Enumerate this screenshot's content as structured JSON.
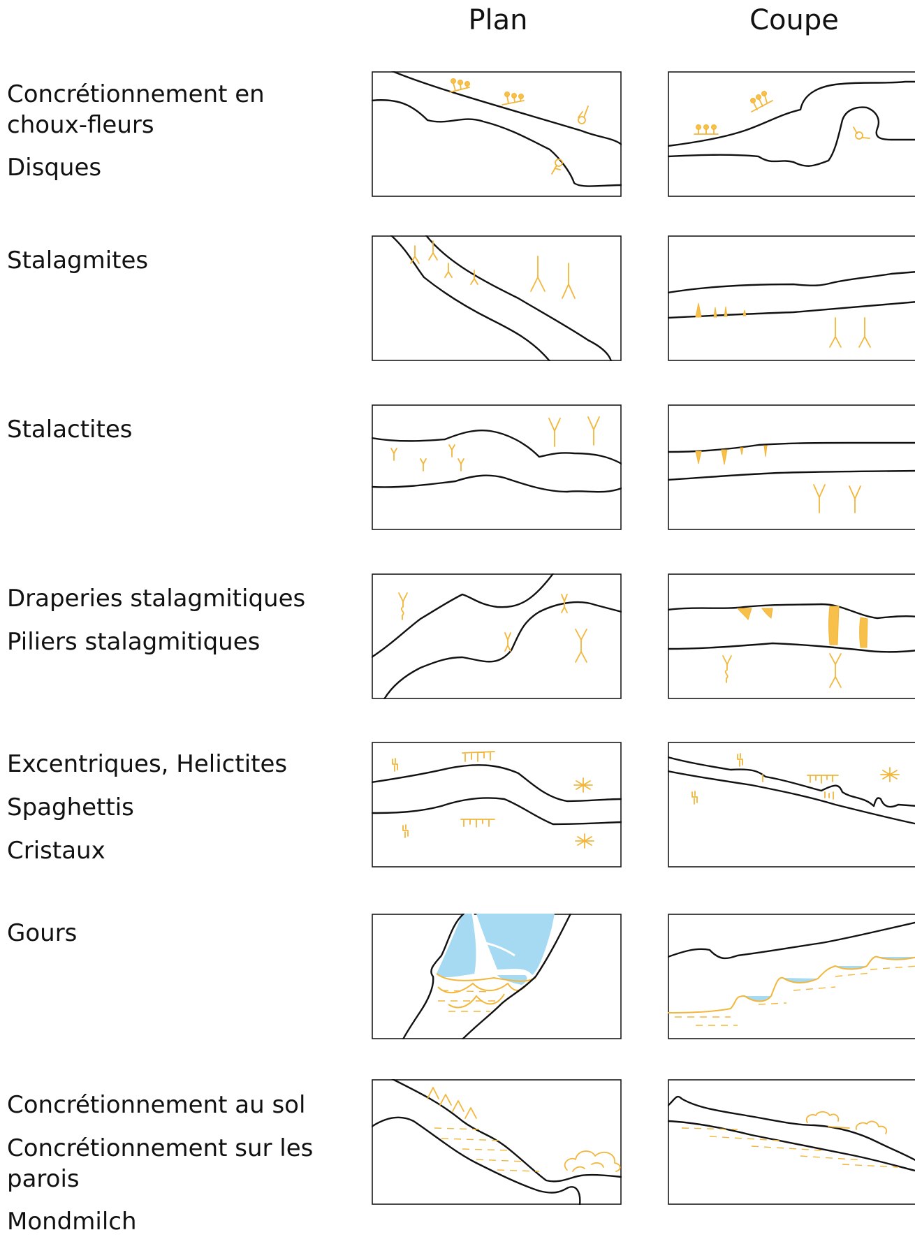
{
  "headers": {
    "plan": "Plan",
    "coupe": "Coupe"
  },
  "rows": [
    {
      "labels": [
        "Concrétionnement en",
        "choux-fleurs",
        "Disques"
      ]
    },
    {
      "labels": [
        "Stalagmites"
      ]
    },
    {
      "labels": [
        "Stalactites"
      ]
    },
    {
      "labels": [
        "Draperies stalagmitiques",
        "Piliers stalagmitiques"
      ]
    },
    {
      "labels": [
        "Excentriques, Helictites",
        "Spaghettis",
        "Cristaux"
      ]
    },
    {
      "labels": [
        "Gours"
      ]
    },
    {
      "labels": [
        "Concrétionnement au sol",
        "Concrétionnement sur les",
        "parois",
        "Mondmilch"
      ]
    }
  ],
  "colors": {
    "symbol": "#f2b63a",
    "water": "#a6daf3",
    "wall": "#111111"
  }
}
